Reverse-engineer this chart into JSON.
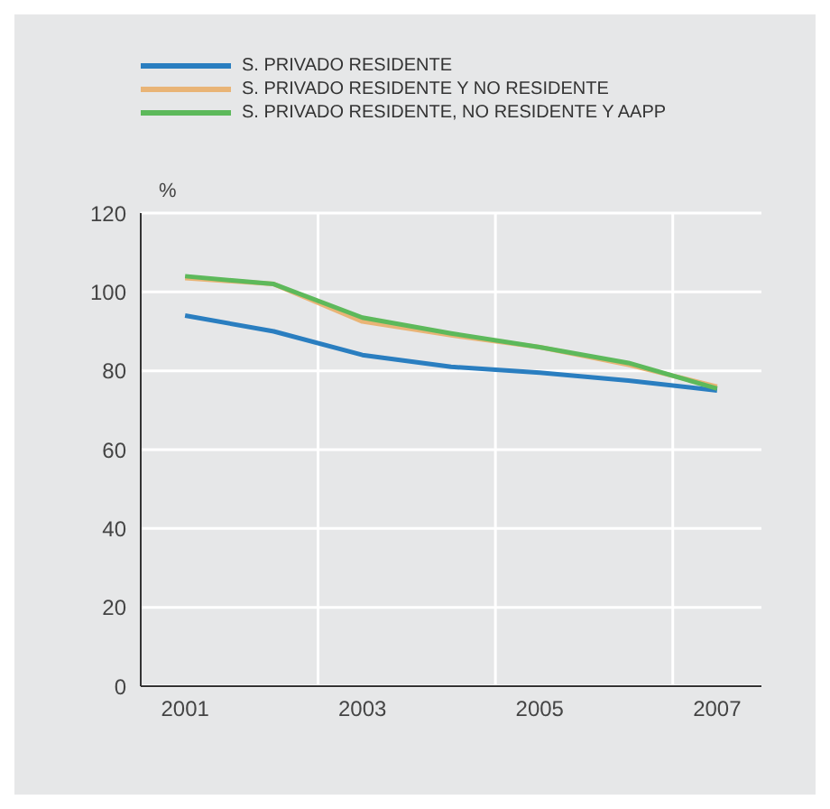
{
  "chart_data": {
    "type": "line",
    "ylabel": "%",
    "x": [
      2001,
      2002,
      2003,
      2004,
      2005,
      2006,
      2007
    ],
    "series": [
      {
        "name": "S. PRIVADO RESIDENTE",
        "color": "#2a7ec0",
        "values": [
          94,
          90,
          84,
          81,
          79.5,
          77.5,
          75
        ]
      },
      {
        "name": "S. PRIVADO RESIDENTE Y NO RESIDENTE",
        "color": "#e9b476",
        "values": [
          103.5,
          102,
          92.5,
          89,
          86,
          81.5,
          76
        ]
      },
      {
        "name": "S. PRIVADO RESIDENTE, NO RESIDENTE Y AAPP",
        "color": "#5db95b",
        "values": [
          104,
          102,
          93.5,
          89.5,
          86,
          82,
          75.5
        ]
      }
    ],
    "xlim": [
      2000.5,
      2007.5
    ],
    "xticks": [
      2001,
      {
        "value": 2002.5,
        "label": null
      },
      2003,
      {
        "value": 2004.5,
        "label": null
      },
      2005,
      {
        "value": 2006.5,
        "label": null
      },
      2007
    ],
    "ylim": [
      0,
      120
    ],
    "yticks": [
      0,
      20,
      40,
      60,
      80,
      100,
      120
    ],
    "grid": true,
    "legend": "top left",
    "marker": "none",
    "line_style": "solid"
  }
}
